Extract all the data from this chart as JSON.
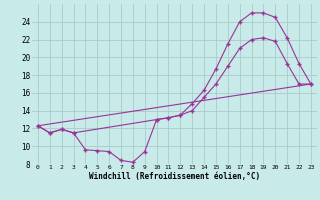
{
  "xlabel": "Windchill (Refroidissement éolien,°C)",
  "background_color": "#c8eae8",
  "grid_color": "#a8cac8",
  "line_color": "#993399",
  "xlim_min": -0.5,
  "xlim_max": 23.5,
  "ylim_min": 8,
  "ylim_max": 26,
  "yticks": [
    8,
    10,
    12,
    14,
    16,
    18,
    20,
    22,
    24
  ],
  "curve1_x": [
    0,
    1,
    2,
    3,
    4,
    5,
    6,
    7,
    8,
    9,
    10,
    11,
    12,
    13,
    14,
    15,
    16,
    17,
    18,
    19,
    20,
    21,
    22,
    23
  ],
  "curve1_y": [
    12.3,
    11.5,
    11.9,
    11.5,
    9.6,
    9.5,
    9.4,
    8.4,
    8.2,
    9.4,
    13.0,
    13.2,
    13.5,
    14.0,
    15.5,
    17.0,
    19.0,
    21.0,
    22.0,
    22.2,
    21.8,
    19.3,
    17.0,
    17.0
  ],
  "curve2_x": [
    0,
    1,
    2,
    3,
    10,
    11,
    12,
    13,
    14,
    15,
    16,
    17,
    18,
    19,
    20,
    21,
    22,
    23
  ],
  "curve2_y": [
    12.3,
    11.5,
    11.9,
    11.5,
    13.0,
    13.2,
    13.5,
    14.8,
    16.3,
    18.7,
    21.5,
    24.0,
    25.0,
    25.0,
    24.5,
    22.2,
    19.3,
    17.0
  ],
  "curve3_x": [
    0,
    23
  ],
  "curve3_y": [
    12.3,
    17.0
  ]
}
